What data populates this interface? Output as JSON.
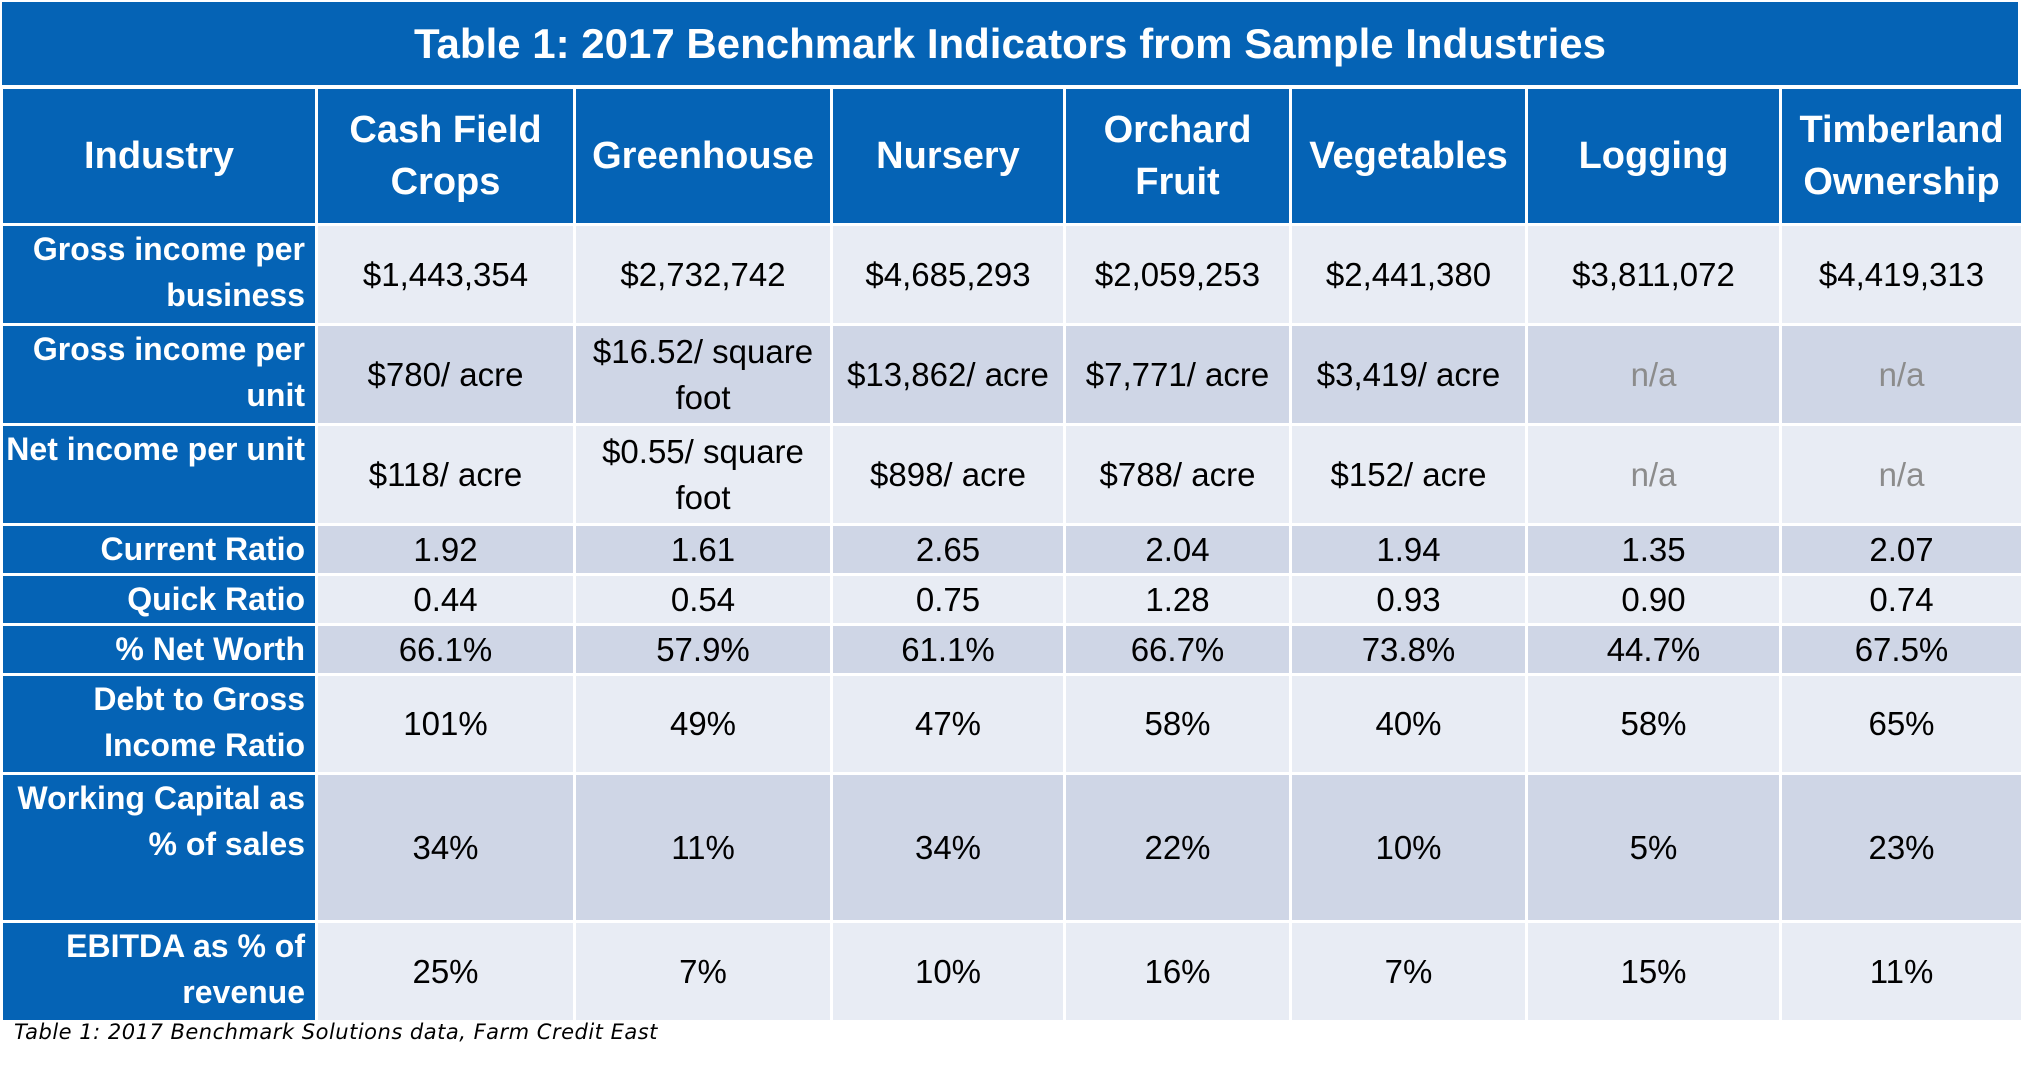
{
  "title": "Table 1: 2017 Benchmark Indicators from Sample Industries",
  "columns": [
    "Industry",
    "Cash Field Crops",
    "Greenhouse",
    "Nursery",
    "Orchard Fruit",
    "Vegetables",
    "Logging",
    "Timberland Ownership"
  ],
  "rows": [
    {
      "label": "Gross income per business",
      "values": [
        "$1,443,354",
        "$2,732,742",
        "$4,685,293",
        "$2,059,253",
        "$2,441,380",
        "$3,811,072",
        "$4,419,313"
      ]
    },
    {
      "label": "Gross income per unit",
      "values": [
        "$780/ acre",
        "$16.52/ square foot",
        "$13,862/ acre",
        "$7,771/ acre",
        "$3,419/ acre",
        "n/a",
        "n/a"
      ]
    },
    {
      "label": "Net income per unit",
      "values": [
        "$118/ acre",
        "$0.55/ square foot",
        "$898/ acre",
        "$788/ acre",
        "$152/ acre",
        "n/a",
        "n/a"
      ]
    },
    {
      "label": "Current Ratio",
      "values": [
        "1.92",
        "1.61",
        "2.65",
        "2.04",
        "1.94",
        "1.35",
        "2.07"
      ]
    },
    {
      "label": "Quick Ratio",
      "values": [
        "0.44",
        "0.54",
        "0.75",
        "1.28",
        "0.93",
        "0.90",
        "0.74"
      ]
    },
    {
      "label": "% Net Worth",
      "values": [
        "66.1%",
        "57.9%",
        "61.1%",
        "66.7%",
        "73.8%",
        "44.7%",
        "67.5%"
      ]
    },
    {
      "label": "Debt to Gross Income Ratio",
      "values": [
        "101%",
        "49%",
        "47%",
        "58%",
        "40%",
        "58%",
        "65%"
      ]
    },
    {
      "label": "Working Capital as % of sales",
      "values": [
        "34%",
        "11%",
        "34%",
        "22%",
        "10%",
        "5%",
        "23%"
      ]
    },
    {
      "label": "EBITDA as % of revenue",
      "values": [
        "25%",
        "7%",
        "10%",
        "16%",
        "7%",
        "15%",
        "11%"
      ]
    }
  ],
  "caption": "Table 1: 2017 Benchmark Solutions data, Farm Credit East",
  "colors": {
    "header_blue": "#0563b5",
    "row_light": "#e8ecf4",
    "row_dark": "#cfd6e6",
    "na_gray": "#8c8c8c"
  }
}
